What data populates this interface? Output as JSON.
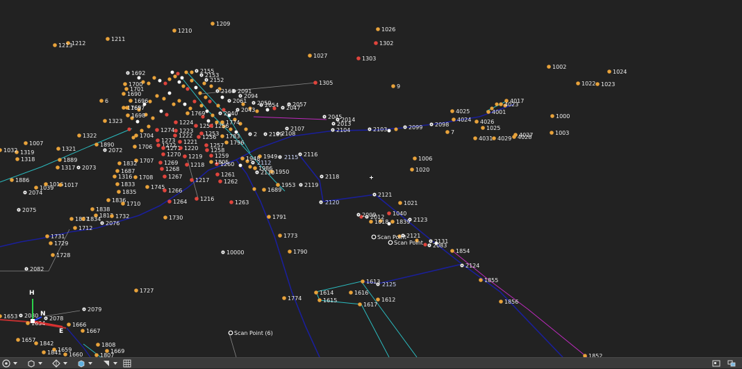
{
  "colors": {
    "background": "#222222",
    "point_orange": "#e8a23a",
    "point_red": "#e0443c",
    "point_white": "#ffffff",
    "line_cyan": "#2bbcc0",
    "line_blue": "#1a1f9a",
    "line_magenta": "#c02ac0",
    "line_grey": "#888888"
  },
  "axis": {
    "h": "H",
    "n": "N",
    "e": "E"
  },
  "scan_points": [
    "Scan Point (6)",
    "Scan Point",
    "Scan Point"
  ],
  "points": [
    {
      "id": "1209",
      "t": "o"
    },
    {
      "id": "1210",
      "t": "o"
    },
    {
      "id": "1211",
      "t": "o"
    },
    {
      "id": "1212",
      "t": "o"
    },
    {
      "id": "1213",
      "t": "o"
    },
    {
      "id": "1026",
      "t": "o"
    },
    {
      "id": "1302",
      "t": "r"
    },
    {
      "id": "1027",
      "t": "o"
    },
    {
      "id": "1303",
      "t": "r"
    },
    {
      "id": "1305",
      "t": "r"
    },
    {
      "id": "9",
      "t": "o"
    },
    {
      "id": "1002",
      "t": "o"
    },
    {
      "id": "1024",
      "t": "o"
    },
    {
      "id": "1022",
      "t": "o"
    },
    {
      "id": "1023",
      "t": "o"
    },
    {
      "id": "1000",
      "t": "o"
    },
    {
      "id": "1003",
      "t": "o"
    },
    {
      "id": "4017",
      "t": "o"
    },
    {
      "id": "4023",
      "t": "o"
    },
    {
      "id": "4025",
      "t": "o"
    },
    {
      "id": "4001",
      "t": "o"
    },
    {
      "id": "4024",
      "t": "o"
    },
    {
      "id": "4026",
      "t": "o"
    },
    {
      "id": "1025",
      "t": "o"
    },
    {
      "id": "4027",
      "t": "o"
    },
    {
      "id": "4031",
      "t": "o"
    },
    {
      "id": "4029",
      "t": "o"
    },
    {
      "id": "4028",
      "t": "o"
    },
    {
      "id": "7",
      "t": "o"
    },
    {
      "id": "2098",
      "t": "w"
    },
    {
      "id": "2099",
      "t": "w"
    },
    {
      "id": "2103",
      "t": "w"
    },
    {
      "id": "2045",
      "t": "w"
    },
    {
      "id": "2014",
      "t": "w"
    },
    {
      "id": "2013",
      "t": "w"
    },
    {
      "id": "2104",
      "t": "w"
    },
    {
      "id": "2107",
      "t": "w"
    },
    {
      "id": "2108",
      "t": "w"
    },
    {
      "id": "2109",
      "t": "w"
    },
    {
      "id": "2",
      "t": "w"
    },
    {
      "id": "2155",
      "t": "w"
    },
    {
      "id": "2153",
      "t": "w"
    },
    {
      "id": "2152",
      "t": "w"
    },
    {
      "id": "1692",
      "t": "w"
    },
    {
      "id": "6",
      "t": "o"
    },
    {
      "id": "2091",
      "t": "w"
    },
    {
      "id": "2094",
      "t": "w"
    },
    {
      "id": "2050",
      "t": "w"
    },
    {
      "id": "2054",
      "t": "w"
    },
    {
      "id": "2057",
      "t": "w"
    },
    {
      "id": "2047",
      "t": "w"
    },
    {
      "id": "1765",
      "t": "o"
    },
    {
      "id": "1769",
      "t": "o"
    },
    {
      "id": "1774",
      "t": "o"
    },
    {
      "id": "1224",
      "t": "r"
    },
    {
      "id": "1274",
      "t": "r"
    },
    {
      "id": "1223",
      "t": "r"
    },
    {
      "id": "1222",
      "t": "r"
    },
    {
      "id": "1221",
      "t": "r"
    },
    {
      "id": "1273",
      "t": "r"
    },
    {
      "id": "1272",
      "t": "r"
    },
    {
      "id": "1271",
      "t": "r"
    },
    {
      "id": "1270",
      "t": "r"
    },
    {
      "id": "1220",
      "t": "r"
    },
    {
      "id": "1219",
      "t": "r"
    },
    {
      "id": "1218",
      "t": "r"
    },
    {
      "id": "1269",
      "t": "r"
    },
    {
      "id": "1268",
      "t": "r"
    },
    {
      "id": "1267",
      "t": "r"
    },
    {
      "id": "1217",
      "t": "r"
    },
    {
      "id": "1266",
      "t": "r"
    },
    {
      "id": "1264",
      "t": "r"
    },
    {
      "id": "1216",
      "t": "r"
    },
    {
      "id": "1263",
      "t": "r"
    },
    {
      "id": "1262",
      "t": "r"
    },
    {
      "id": "1261",
      "t": "r"
    },
    {
      "id": "1260",
      "t": "r"
    },
    {
      "id": "1259",
      "t": "r"
    },
    {
      "id": "1258",
      "t": "r"
    },
    {
      "id": "1257",
      "t": "r"
    },
    {
      "id": "1256",
      "t": "r"
    },
    {
      "id": "1254",
      "t": "r"
    },
    {
      "id": "1253",
      "t": "r"
    },
    {
      "id": "1796",
      "t": "o"
    },
    {
      "id": "1949",
      "t": "o"
    },
    {
      "id": "2115",
      "t": "w"
    },
    {
      "id": "2116",
      "t": "w"
    },
    {
      "id": "2112",
      "t": "w"
    },
    {
      "id": "1948",
      "t": "o"
    },
    {
      "id": "1950",
      "t": "o"
    },
    {
      "id": "1953",
      "t": "o"
    },
    {
      "id": "2119",
      "t": "w"
    },
    {
      "id": "2118",
      "t": "w"
    },
    {
      "id": "1689",
      "t": "o"
    },
    {
      "id": "2121",
      "t": "w"
    },
    {
      "id": "2120",
      "t": "w"
    },
    {
      "id": "1021",
      "t": "o"
    },
    {
      "id": "1006",
      "t": "o"
    },
    {
      "id": "1020",
      "t": "o"
    },
    {
      "id": "1040",
      "t": "r"
    },
    {
      "id": "2123",
      "t": "w"
    },
    {
      "id": "2009",
      "t": "w"
    },
    {
      "id": "2012",
      "t": "w"
    },
    {
      "id": "1018",
      "t": "o"
    },
    {
      "id": "1839",
      "t": "o"
    },
    {
      "id": "2121b",
      "t": "w"
    },
    {
      "id": "2131",
      "t": "w"
    },
    {
      "id": "2083",
      "t": "w"
    },
    {
      "id": "1854",
      "t": "o"
    },
    {
      "id": "2124",
      "t": "w"
    },
    {
      "id": "1855",
      "t": "o"
    },
    {
      "id": "1856",
      "t": "o"
    },
    {
      "id": "1852",
      "t": "o"
    },
    {
      "id": "2125",
      "t": "w"
    },
    {
      "id": "1613",
      "t": "o"
    },
    {
      "id": "1612",
      "t": "o"
    },
    {
      "id": "1617",
      "t": "o"
    },
    {
      "id": "1616",
      "t": "o"
    },
    {
      "id": "1614",
      "t": "o"
    },
    {
      "id": "1615",
      "t": "o"
    },
    {
      "id": "1774b",
      "t": "o"
    },
    {
      "id": "1727",
      "t": "o"
    },
    {
      "id": "10000",
      "t": "w"
    },
    {
      "id": "1790",
      "t": "o"
    },
    {
      "id": "1773",
      "t": "o"
    },
    {
      "id": "1791",
      "t": "o"
    },
    {
      "id": "1730",
      "t": "o"
    },
    {
      "id": "1745",
      "t": "o"
    },
    {
      "id": "1710",
      "t": "o"
    },
    {
      "id": "1708",
      "t": "o"
    },
    {
      "id": "1707",
      "t": "o"
    },
    {
      "id": "1706",
      "t": "o"
    },
    {
      "id": "1704",
      "t": "o"
    },
    {
      "id": "1836",
      "t": "o"
    },
    {
      "id": "1835",
      "t": "o"
    },
    {
      "id": "1833",
      "t": "o"
    },
    {
      "id": "1316",
      "t": "o"
    },
    {
      "id": "1687",
      "t": "o"
    },
    {
      "id": "1832",
      "t": "o"
    },
    {
      "id": "1838",
      "t": "o"
    },
    {
      "id": "1813",
      "t": "o"
    },
    {
      "id": "1732",
      "t": "o"
    },
    {
      "id": "1837",
      "t": "o"
    },
    {
      "id": "1834",
      "t": "o"
    },
    {
      "id": "2076",
      "t": "w"
    },
    {
      "id": "1712",
      "t": "o"
    },
    {
      "id": "1731",
      "t": "o"
    },
    {
      "id": "1729",
      "t": "o"
    },
    {
      "id": "1728",
      "t": "o"
    },
    {
      "id": "2082",
      "t": "w"
    },
    {
      "id": "1322",
      "t": "o"
    },
    {
      "id": "1890",
      "t": "o"
    },
    {
      "id": "1321",
      "t": "o"
    },
    {
      "id": "1889",
      "t": "o"
    },
    {
      "id": "1317",
      "t": "o"
    },
    {
      "id": "2073",
      "t": "w"
    },
    {
      "id": "2072",
      "t": "w"
    },
    {
      "id": "1007",
      "t": "o"
    },
    {
      "id": "1319",
      "t": "o"
    },
    {
      "id": "1318",
      "t": "o"
    },
    {
      "id": "1032",
      "t": "o"
    },
    {
      "id": "1886",
      "t": "o"
    },
    {
      "id": "2074",
      "t": "w"
    },
    {
      "id": "1039",
      "t": "o"
    },
    {
      "id": "1016",
      "t": "o"
    },
    {
      "id": "1017",
      "t": "o"
    },
    {
      "id": "2075",
      "t": "w"
    },
    {
      "id": "1323",
      "t": "o"
    },
    {
      "id": "2079",
      "t": "w"
    },
    {
      "id": "1653",
      "t": "o"
    },
    {
      "id": "2080",
      "t": "w"
    },
    {
      "id": "2078",
      "t": "w"
    },
    {
      "id": "1666",
      "t": "o"
    },
    {
      "id": "1667",
      "t": "o"
    },
    {
      "id": "1657",
      "t": "o"
    },
    {
      "id": "1842",
      "t": "o"
    },
    {
      "id": "1659",
      "t": "o"
    },
    {
      "id": "1660",
      "t": "o"
    },
    {
      "id": "1808",
      "t": "o"
    },
    {
      "id": "1669",
      "t": "o"
    },
    {
      "id": "1807",
      "t": "o"
    },
    {
      "id": "1841",
      "t": "o"
    },
    {
      "id": "1634",
      "t": "o"
    },
    {
      "id": "1700",
      "t": "o"
    },
    {
      "id": "1701",
      "t": "o"
    },
    {
      "id": "1690",
      "t": "o"
    },
    {
      "id": "1696",
      "t": "o"
    },
    {
      "id": "1697",
      "t": "o"
    },
    {
      "id": "1698",
      "t": "o"
    },
    {
      "id": "2168",
      "t": "w"
    },
    {
      "id": "2061",
      "t": "w"
    },
    {
      "id": "2043",
      "t": "w"
    },
    {
      "id": "2040",
      "t": "w"
    },
    {
      "id": "1986",
      "t": "o"
    },
    {
      "id": "1783",
      "t": "o"
    },
    {
      "id": "1256b",
      "t": "r"
    },
    {
      "id": "2110",
      "t": "w"
    },
    {
      "id": "1805",
      "t": "o"
    }
  ]
}
